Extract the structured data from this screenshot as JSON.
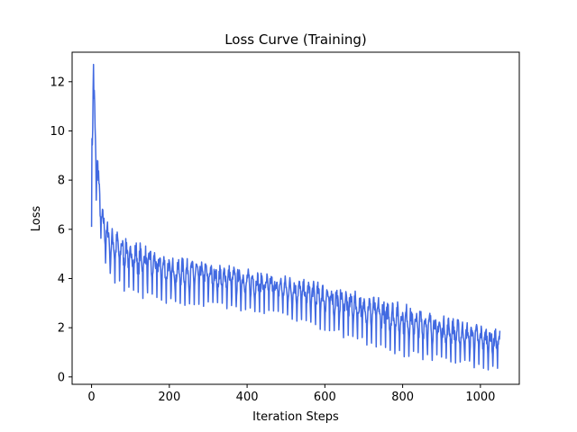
{
  "chart_data": {
    "type": "line",
    "title": "Loss Curve (Training)",
    "xlabel": "Iteration Steps",
    "ylabel": "Loss",
    "xlim": [
      -50,
      1100
    ],
    "ylim": [
      -0.3,
      13.2
    ],
    "xticks": [
      0,
      200,
      400,
      600,
      800,
      1000
    ],
    "yticks": [
      0,
      2,
      4,
      6,
      8,
      10,
      12
    ],
    "grid": false,
    "legend": "none",
    "series": [
      {
        "color": "#4169e1",
        "approx_envelope": {
          "x": [
            0,
            5,
            10,
            20,
            30,
            50,
            100,
            150,
            200,
            300,
            400,
            500,
            600,
            700,
            800,
            900,
            1000,
            1050
          ],
          "upper": [
            11.4,
            12.7,
            11.0,
            8.0,
            6.7,
            6.1,
            5.6,
            5.3,
            4.9,
            4.7,
            4.4,
            4.1,
            3.8,
            3.4,
            3.0,
            2.5,
            2.1,
            1.9
          ],
          "lower": [
            6.1,
            7.5,
            7.0,
            5.7,
            4.8,
            3.8,
            3.3,
            3.1,
            2.9,
            2.8,
            2.6,
            2.4,
            1.8,
            1.3,
            0.8,
            0.6,
            0.3,
            0.25
          ]
        }
      }
    ]
  }
}
